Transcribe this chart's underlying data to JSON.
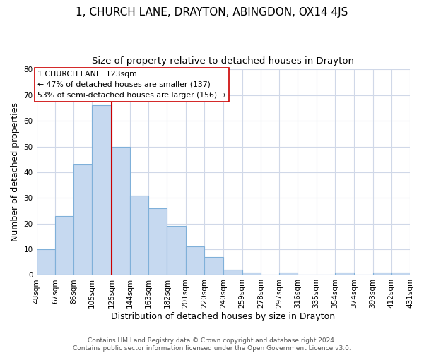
{
  "title": "1, CHURCH LANE, DRAYTON, ABINGDON, OX14 4JS",
  "subtitle": "Size of property relative to detached houses in Drayton",
  "xlabel": "Distribution of detached houses by size in Drayton",
  "ylabel": "Number of detached properties",
  "bin_edges": [
    48,
    67,
    86,
    105,
    125,
    144,
    163,
    182,
    201,
    220,
    240,
    259,
    278,
    297,
    316,
    335,
    354,
    374,
    393,
    412,
    431
  ],
  "bin_labels": [
    "48sqm",
    "67sqm",
    "86sqm",
    "105sqm",
    "125sqm",
    "144sqm",
    "163sqm",
    "182sqm",
    "201sqm",
    "220sqm",
    "240sqm",
    "259sqm",
    "278sqm",
    "297sqm",
    "316sqm",
    "335sqm",
    "354sqm",
    "374sqm",
    "393sqm",
    "412sqm",
    "431sqm"
  ],
  "counts": [
    10,
    23,
    43,
    66,
    50,
    31,
    26,
    19,
    11,
    7,
    2,
    1,
    0,
    1,
    0,
    0,
    1,
    0,
    1,
    1
  ],
  "bar_color": "#c6d9f0",
  "bar_edge_color": "#7fb0d9",
  "vline_x": 125,
  "vline_color": "#cc0000",
  "annotation_title": "1 CHURCH LANE: 123sqm",
  "annotation_line1": "← 47% of detached houses are smaller (137)",
  "annotation_line2": "53% of semi-detached houses are larger (156) →",
  "annotation_box_color": "white",
  "annotation_box_edge": "#cc0000",
  "ylim": [
    0,
    80
  ],
  "yticks": [
    0,
    10,
    20,
    30,
    40,
    50,
    60,
    70,
    80
  ],
  "footer_line1": "Contains HM Land Registry data © Crown copyright and database right 2024.",
  "footer_line2": "Contains public sector information licensed under the Open Government Licence v3.0.",
  "title_fontsize": 11,
  "subtitle_fontsize": 9.5,
  "axis_label_fontsize": 9,
  "tick_fontsize": 7.5,
  "annotation_fontsize": 7.8,
  "footer_fontsize": 6.5,
  "background_color": "#ffffff",
  "grid_color": "#d0d8e8"
}
